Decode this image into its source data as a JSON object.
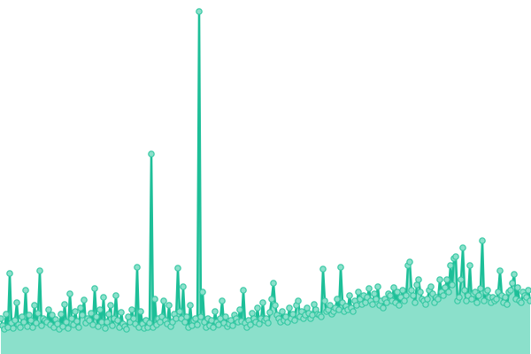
{
  "chart_data": {
    "type": "area",
    "title": "",
    "xlabel": "",
    "ylabel": "",
    "grid": false,
    "legend": "none",
    "ylim": [
      0,
      390
    ],
    "colors": {
      "line": "#1dbf98",
      "fill": "#8be0cb",
      "marker_fill": "#8be0cb",
      "marker_stroke": "#36c8a3"
    },
    "values": [
      40,
      32,
      28,
      45,
      30,
      91,
      35,
      29,
      38,
      58,
      33,
      30,
      42,
      36,
      72,
      31,
      44,
      38,
      30,
      55,
      35,
      46,
      94,
      32,
      40,
      38,
      36,
      50,
      33,
      44,
      30,
      39,
      34,
      28,
      45,
      31,
      56,
      36,
      29,
      68,
      40,
      33,
      48,
      37,
      30,
      52,
      44,
      61,
      35,
      40,
      38,
      46,
      33,
      74,
      42,
      31,
      50,
      36,
      64,
      29,
      36,
      45,
      55,
      32,
      40,
      66,
      38,
      30,
      47,
      34,
      31,
      28,
      42,
      36,
      50,
      40,
      34,
      98,
      30,
      48,
      34,
      29,
      38,
      30,
      35,
      226,
      30,
      62,
      33,
      40,
      36,
      42,
      60,
      38,
      34,
      55,
      31,
      36,
      45,
      40,
      97,
      48,
      40,
      76,
      36,
      42,
      30,
      55,
      32,
      38,
      40,
      33,
      387,
      42,
      70,
      36,
      30,
      40,
      32,
      38,
      30,
      48,
      36,
      33,
      40,
      60,
      35,
      42,
      31,
      34,
      38,
      32,
      44,
      40,
      36,
      50,
      37,
      72,
      35,
      30,
      38,
      33,
      46,
      40,
      36,
      52,
      34,
      40,
      58,
      38,
      40,
      35,
      47,
      62,
      80,
      55,
      44,
      40,
      36,
      48,
      38,
      42,
      36,
      52,
      40,
      45,
      38,
      55,
      60,
      42,
      48,
      40,
      44,
      52,
      46,
      40,
      44,
      56,
      50,
      45,
      44,
      42,
      96,
      60,
      48,
      50,
      55,
      45,
      48,
      52,
      62,
      50,
      98,
      58,
      48,
      54,
      50,
      66,
      52,
      48,
      60,
      55,
      70,
      62,
      56,
      66,
      58,
      64,
      74,
      60,
      56,
      68,
      62,
      76,
      55,
      60,
      52,
      62,
      58,
      68,
      66,
      60,
      75,
      58,
      70,
      55,
      64,
      72,
      60,
      66,
      100,
      104,
      72,
      66,
      58,
      78,
      84,
      70,
      62,
      60,
      56,
      62,
      72,
      76,
      68,
      58,
      64,
      62,
      84,
      70,
      66,
      75,
      84,
      70,
      100,
      78,
      108,
      110,
      60,
      64,
      84,
      120,
      72,
      60,
      66,
      100,
      62,
      68,
      70,
      58,
      66,
      74,
      128,
      60,
      70,
      72,
      64,
      58,
      64,
      60,
      62,
      70,
      94,
      66,
      58,
      64,
      56,
      70,
      72,
      80,
      90,
      62,
      75,
      60,
      58,
      70,
      66,
      64,
      72,
      60
    ]
  }
}
